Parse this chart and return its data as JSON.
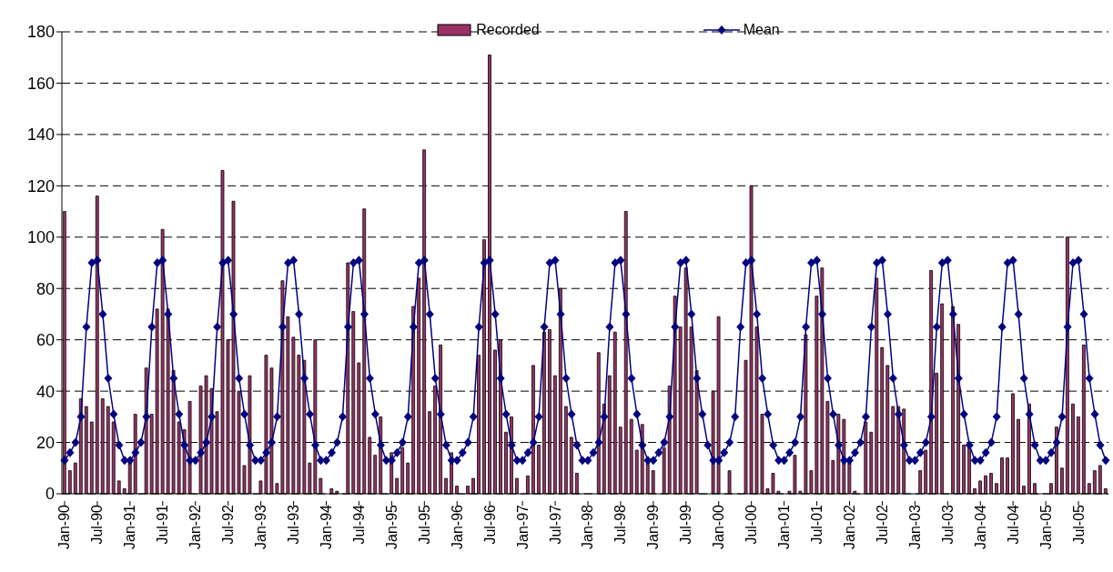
{
  "chart_data": {
    "type": "bar",
    "categories": [
      "Jan-90",
      null,
      null,
      null,
      null,
      null,
      "Jul-90",
      null,
      null,
      null,
      null,
      null,
      "Jan-91",
      null,
      null,
      null,
      null,
      null,
      "Jul-91",
      null,
      null,
      null,
      null,
      null,
      "Jan-92",
      null,
      null,
      null,
      null,
      null,
      "Jul-92",
      null,
      null,
      null,
      null,
      null,
      "Jan-93",
      null,
      null,
      null,
      null,
      null,
      "Jul-93",
      null,
      null,
      null,
      null,
      null,
      "Jan-94",
      null,
      null,
      null,
      null,
      null,
      "Jul-94",
      null,
      null,
      null,
      null,
      null,
      "Jan-95",
      null,
      null,
      null,
      null,
      null,
      "Jul-95",
      null,
      null,
      null,
      null,
      null,
      "Jan-96",
      null,
      null,
      null,
      null,
      null,
      "Jul-96",
      null,
      null,
      null,
      null,
      null,
      "Jan-97",
      null,
      null,
      null,
      null,
      null,
      "Jul-97",
      null,
      null,
      null,
      null,
      null,
      "Jan-98",
      null,
      null,
      null,
      null,
      null,
      "Jul-98",
      null,
      null,
      null,
      null,
      null,
      "Jan-99",
      null,
      null,
      null,
      null,
      null,
      "Jul-99",
      null,
      null,
      null,
      null,
      null,
      "Jan-00",
      null,
      null,
      null,
      null,
      null,
      "Jul-00",
      null,
      null,
      null,
      null,
      null,
      "Jan-01",
      null,
      null,
      null,
      null,
      null,
      "Jul-01",
      null,
      null,
      null,
      null,
      null,
      "Jan-02",
      null,
      null,
      null,
      null,
      null,
      "Jul-02",
      null,
      null,
      null,
      null,
      null,
      "Jan-03",
      null,
      null,
      null,
      null,
      null,
      "Jul-03",
      null,
      null,
      null,
      null,
      null,
      "Jan-04",
      null,
      null,
      null,
      null,
      null,
      "Jul-04",
      null,
      null,
      null,
      null,
      null,
      "Jan-05",
      null,
      null,
      null,
      null,
      null,
      "Jul-05",
      null,
      null,
      null,
      null,
      null
    ],
    "series": [
      {
        "name": "Recorded",
        "color": "#993366",
        "values": [
          110,
          9,
          12,
          37,
          34,
          28,
          116,
          37,
          34,
          28,
          5,
          2,
          12,
          31,
          0,
          49,
          31,
          72,
          103,
          72,
          48,
          28,
          25,
          36,
          0,
          42,
          46,
          41,
          32,
          126,
          60,
          114,
          40,
          11,
          46,
          0,
          5,
          54,
          49,
          4,
          83,
          69,
          61,
          54,
          52,
          12,
          60,
          6,
          0,
          2,
          1,
          0,
          90,
          71,
          51,
          111,
          22,
          15,
          30,
          0,
          16,
          6,
          18,
          12,
          73,
          84,
          134,
          32,
          42,
          58,
          6,
          16,
          3,
          0,
          3,
          6,
          54,
          99,
          171,
          56,
          60,
          24,
          30,
          6,
          0,
          7,
          50,
          19,
          63,
          64,
          46,
          80,
          34,
          22,
          8,
          0,
          0,
          0,
          55,
          35,
          46,
          63,
          26,
          110,
          29,
          17,
          27,
          12,
          9,
          0,
          18,
          42,
          77,
          65,
          88,
          65,
          48,
          0,
          0,
          40,
          69,
          0,
          9,
          0,
          0,
          52,
          120,
          65,
          31,
          2,
          8,
          1,
          0,
          1,
          15,
          1,
          62,
          9,
          77,
          88,
          36,
          13,
          31,
          29,
          12,
          1,
          0,
          28,
          24,
          84,
          57,
          50,
          34,
          34,
          33,
          0,
          0,
          9,
          17,
          87,
          47,
          74,
          0,
          73,
          66,
          19,
          19,
          2,
          5,
          7,
          8,
          4,
          14,
          14,
          39,
          29,
          3,
          35,
          4,
          0,
          0,
          4,
          26,
          10,
          100,
          35,
          30,
          58,
          4,
          9,
          11,
          2
        ]
      },
      {
        "name": "Mean",
        "type": "line",
        "color": "#000080",
        "values": [
          13,
          16,
          20,
          30,
          65,
          90,
          91,
          70,
          45,
          31,
          19,
          13,
          13,
          16,
          20,
          30,
          65,
          90,
          91,
          70,
          45,
          31,
          19,
          13,
          13,
          16,
          20,
          30,
          65,
          90,
          91,
          70,
          45,
          31,
          19,
          13,
          13,
          16,
          20,
          30,
          65,
          90,
          91,
          70,
          45,
          31,
          19,
          13,
          13,
          16,
          20,
          30,
          65,
          90,
          91,
          70,
          45,
          31,
          19,
          13,
          13,
          16,
          20,
          30,
          65,
          90,
          91,
          70,
          45,
          31,
          19,
          13,
          13,
          16,
          20,
          30,
          65,
          90,
          91,
          70,
          45,
          31,
          19,
          13,
          13,
          16,
          20,
          30,
          65,
          90,
          91,
          70,
          45,
          31,
          19,
          13,
          13,
          16,
          20,
          30,
          65,
          90,
          91,
          70,
          45,
          31,
          19,
          13,
          13,
          16,
          20,
          30,
          65,
          90,
          91,
          70,
          45,
          31,
          19,
          13,
          13,
          16,
          20,
          30,
          65,
          90,
          91,
          70,
          45,
          31,
          19,
          13,
          13,
          16,
          20,
          30,
          65,
          90,
          91,
          70,
          45,
          31,
          19,
          13,
          13,
          16,
          20,
          30,
          65,
          90,
          91,
          70,
          45,
          31,
          19,
          13,
          13,
          16,
          20,
          30,
          65,
          90,
          91,
          70,
          45,
          31,
          19,
          13,
          13,
          16,
          20,
          30,
          65,
          90,
          91,
          70,
          45,
          31,
          19,
          13,
          13,
          16,
          20,
          30,
          65,
          90,
          91,
          70,
          45,
          31,
          19,
          13
        ]
      }
    ],
    "ylim": [
      0,
      180
    ],
    "yticks": [
      0,
      20,
      40,
      60,
      80,
      100,
      120,
      140,
      160,
      180
    ],
    "grid": "y",
    "legend": "top",
    "marker": "diamond",
    "line_style": "solid"
  }
}
